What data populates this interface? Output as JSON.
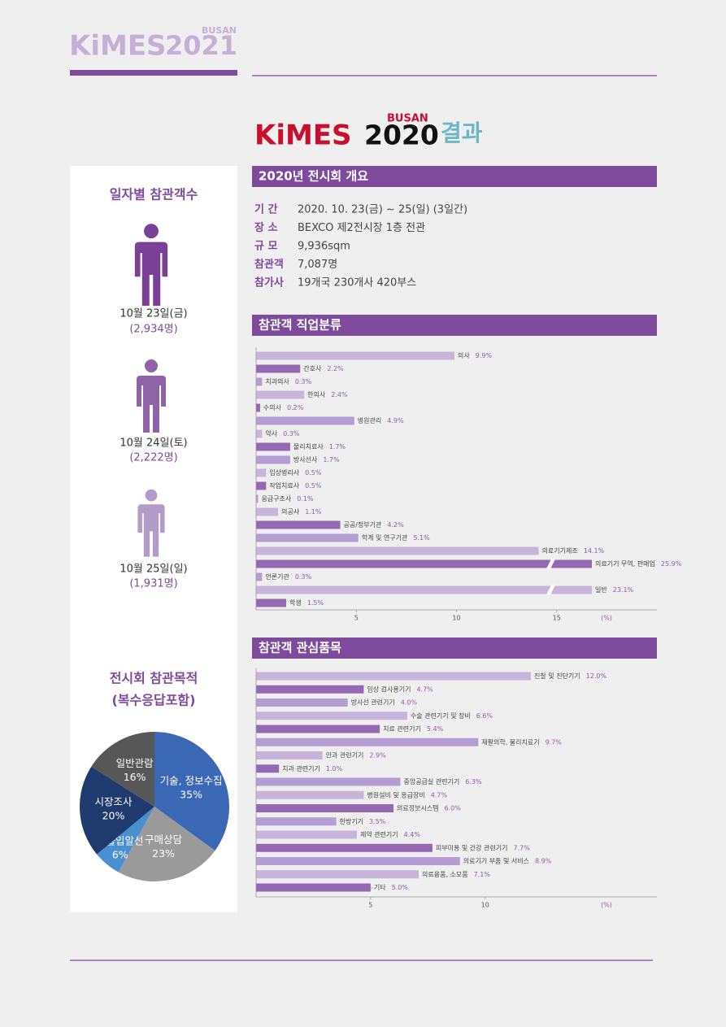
{
  "header": {
    "brand": "KiMES",
    "city": "BUSAN",
    "year": "2021"
  },
  "title": {
    "brand": "KiMES",
    "city": "BUSAN",
    "year": "2020",
    "suffix": "결과"
  },
  "overview": {
    "heading": "2020년 전시회 개요",
    "rows": [
      {
        "label": "기 간",
        "value": "2020. 10. 23(금) ~ 25(일) (3일간)"
      },
      {
        "label": "장 소",
        "value": "BEXCO 제2전시장 1층 전관"
      },
      {
        "label": "규 모",
        "value": "9,936sqm"
      },
      {
        "label": "참관객",
        "value": "7,087명"
      },
      {
        "label": "참가사",
        "value": "19개국 230개사 420부스"
      }
    ]
  },
  "daily": {
    "heading": "일자별 참관객수",
    "days": [
      {
        "date": "10월 23일(금)",
        "count": "(2,934명)"
      },
      {
        "date": "10월 24일(토)",
        "count": "(2,222명)"
      },
      {
        "date": "10월 25일(일)",
        "count": "(1,931명)"
      }
    ]
  },
  "chart_data": [
    {
      "type": "hbar",
      "title": "참관객 직업분류",
      "unit": "(%)",
      "categories": [
        "의사",
        "간호사",
        "치과의사",
        "한의사",
        "수의사",
        "병원관리",
        "약사",
        "물리치료사",
        "방사선사",
        "임상병리사",
        "작업치료사",
        "응급구조사",
        "의공사",
        "공공/정부기관",
        "학계 및 연구기관",
        "의료기기제조",
        "의료기기 무역, 판매업",
        "언론기관",
        "일반",
        "학생"
      ],
      "values": [
        9.9,
        2.2,
        0.3,
        2.4,
        0.2,
        4.9,
        0.3,
        1.7,
        1.7,
        0.5,
        0.5,
        0.1,
        1.1,
        4.2,
        5.1,
        14.1,
        25.9,
        0.3,
        23.1,
        1.5
      ],
      "value_labels": [
        "9.9%",
        "2.2%",
        "0.3%",
        "2.4%",
        "0.2%",
        "4.9%",
        "0.3%",
        "1.7%",
        "1.7%",
        "0.5%",
        "0.5%",
        "0.1%",
        "1.1%",
        "4.2%",
        "5.1%",
        "14.1%",
        "25.9%",
        "0.3%",
        "23.1%",
        "1.5%"
      ],
      "colors": [
        "#c8b4da",
        "#9468b3",
        "#b39dd2",
        "#c8b4da",
        "#9468b3",
        "#b39dd2",
        "#c8b4da",
        "#9468b3",
        "#b39dd2",
        "#c8b4da",
        "#9468b3",
        "#b39dd2",
        "#c8b4da",
        "#9468b3",
        "#b39dd2",
        "#c8b4da",
        "#9468b3",
        "#b39dd2",
        "#c8b4da",
        "#9468b3"
      ],
      "xlim": [
        0,
        20
      ],
      "xticks": [
        5,
        10,
        15
      ]
    },
    {
      "type": "hbar",
      "title": "참관객 관심품목",
      "unit": "(%)",
      "categories": [
        "진찰 및 진단기기",
        "임상 검사용기기",
        "방사선 관련기기",
        "수술 관련기기 및 장비",
        "치료 관련기기",
        "재활의학, 물리치료기",
        "안과 관련기기",
        "치과 관련기기",
        "중앙공급실 관련기기",
        "병원설비 및 응급장비",
        "의료정보시스템",
        "한방기기",
        "제약 관련기기",
        "피부미용 및 건강 관련기기",
        "의료기기 부품 및 서비스",
        "의료용품, 소모품",
        "기타"
      ],
      "values": [
        12.0,
        4.7,
        4.0,
        6.6,
        5.4,
        9.7,
        2.9,
        1.0,
        6.3,
        4.7,
        6.0,
        3.5,
        4.4,
        7.7,
        8.9,
        7.1,
        5.0
      ],
      "value_labels": [
        "12.0%",
        "4.7%",
        "4.0%",
        "6.6%",
        "5.4%",
        "9.7%",
        "2.9%",
        "1.0%",
        "6.3%",
        "4.7%",
        "6.0%",
        "3.5%",
        "4.4%",
        "7.7%",
        "8.9%",
        "7.1%",
        "5.0%"
      ],
      "colors": [
        "#c8b4da",
        "#9468b3",
        "#b39dd2",
        "#c8b4da",
        "#9468b3",
        "#b39dd2",
        "#c8b4da",
        "#9468b3",
        "#b39dd2",
        "#c8b4da",
        "#9468b3",
        "#b39dd2",
        "#c8b4da",
        "#9468b3",
        "#b39dd2",
        "#c8b4da",
        "#9468b3"
      ],
      "xlim": [
        0,
        17.5
      ],
      "xticks": [
        5,
        10
      ]
    },
    {
      "type": "pie",
      "title": "전시회 참관목적",
      "subtitle": "(복수응답포함)",
      "categories": [
        "기술, 정보수집",
        "구매상담",
        "수출입알선",
        "시장조사",
        "일반관람"
      ],
      "values": [
        35,
        23,
        6,
        20,
        16
      ],
      "value_labels": [
        "35%",
        "23%",
        "6%",
        "20%",
        "16%"
      ],
      "colors": [
        "#3a68b4",
        "#9a9a9a",
        "#4a8fd0",
        "#1f3a6e",
        "#575757"
      ]
    }
  ]
}
